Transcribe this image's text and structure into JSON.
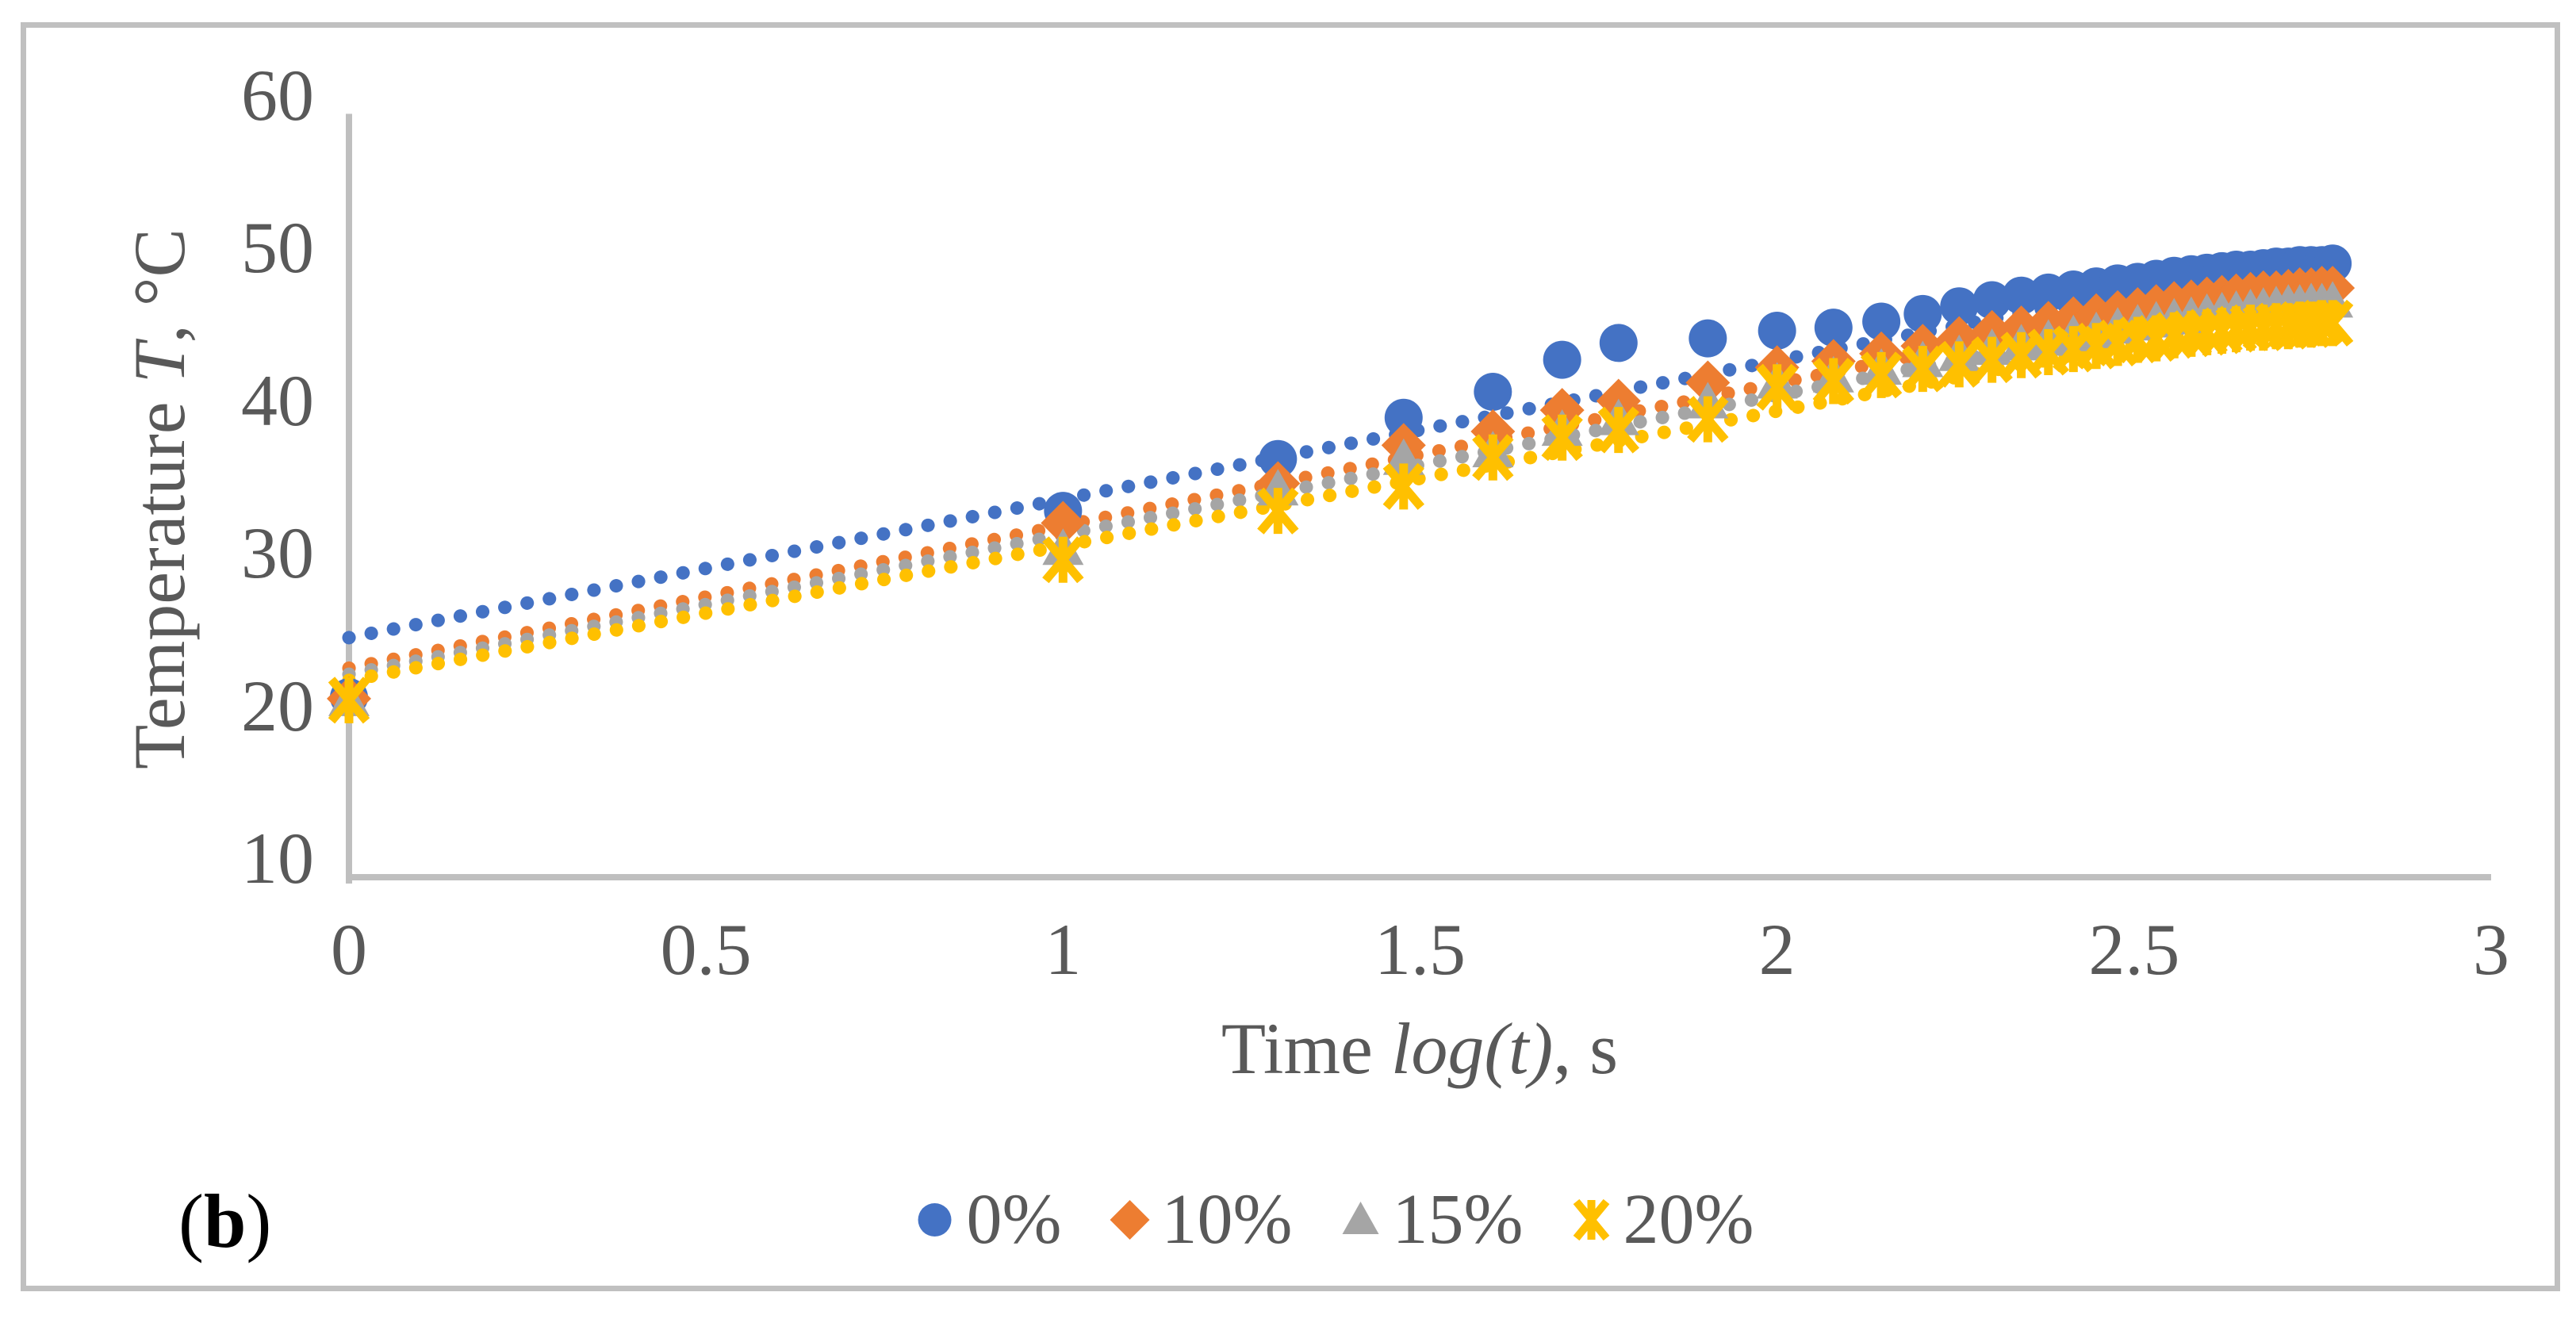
{
  "figure": {
    "panel_label": {
      "open": "(",
      "letter": "b",
      "close": ")"
    }
  },
  "chart_data": {
    "type": "scatter",
    "title": "",
    "xlabel": {
      "prefix": "Time ",
      "italic": "log(t)",
      "suffix": ", s"
    },
    "ylabel": {
      "prefix": "Temperature ",
      "italic": "T",
      "suffix": ", °C"
    },
    "xlim": [
      0,
      3
    ],
    "ylim": [
      10,
      60
    ],
    "grid": false,
    "legend_position": "bottom-center",
    "axis_line_color": "#BFBFBF",
    "tick_text_color": "#595959",
    "xticks": {
      "values": [
        0,
        0.5,
        1,
        1.5,
        2,
        2.5,
        3
      ],
      "labels": [
        "0",
        "0.5",
        "1",
        "1.5",
        "2",
        "2.5",
        "3"
      ]
    },
    "yticks": {
      "values": [
        10,
        20,
        30,
        40,
        50,
        60
      ],
      "labels": [
        "10",
        "20",
        "30",
        "40",
        "50",
        "60"
      ]
    },
    "x": [
      0,
      1,
      1.301,
      1.477,
      1.602,
      1.699,
      1.778,
      1.903,
      2,
      2.079,
      2.146,
      2.204,
      2.255,
      2.301,
      2.342,
      2.38,
      2.415,
      2.447,
      2.477,
      2.505,
      2.531,
      2.556,
      2.58,
      2.602,
      2.623,
      2.643,
      2.663,
      2.681,
      2.699,
      2.716,
      2.732,
      2.748,
      2.763,
      2.778
    ],
    "series": [
      {
        "name": "0%",
        "color": "#4472C4",
        "marker": "circle",
        "values": [
          22.0,
          34.2,
          37.6,
          40.3,
          42.0,
          44.1,
          45.2,
          45.5,
          46.0,
          46.2,
          46.6,
          47.1,
          47.6,
          48.0,
          48.3,
          48.5,
          48.7,
          48.9,
          49.1,
          49.2,
          49.4,
          49.6,
          49.7,
          49.8,
          49.9,
          50.0,
          50.0,
          50.1,
          50.2,
          50.2,
          50.3,
          50.3,
          50.3,
          50.4
        ],
        "trendline": {
          "x": [
            0,
            2.778
          ],
          "y": [
            25.9,
            51.1
          ]
        }
      },
      {
        "name": "10%",
        "color": "#ED7D31",
        "marker": "diamond",
        "values": [
          21.9,
          33.4,
          36.0,
          38.5,
          39.4,
          40.8,
          41.4,
          42.6,
          43.6,
          44.0,
          44.5,
          45.0,
          45.5,
          45.9,
          46.2,
          46.5,
          46.8,
          47.0,
          47.2,
          47.4,
          47.6,
          47.8,
          47.9,
          48.1,
          48.2,
          48.3,
          48.4,
          48.5,
          48.5,
          48.6,
          48.7,
          48.7,
          48.8,
          48.8
        ],
        "trendline": {
          "x": [
            0,
            2.778
          ],
          "y": [
            23.9,
            49.8
          ]
        }
      },
      {
        "name": "15%",
        "color": "#A5A5A5",
        "marker": "triangle",
        "values": [
          21.8,
          31.7,
          35.6,
          37.6,
          38.1,
          39.5,
          40.2,
          41.3,
          42.6,
          43.0,
          43.5,
          44.0,
          44.4,
          44.8,
          45.1,
          45.4,
          45.7,
          45.9,
          46.2,
          46.4,
          46.6,
          46.8,
          46.9,
          47.1,
          47.2,
          47.3,
          47.4,
          47.5,
          47.6,
          47.7,
          47.7,
          47.8,
          47.8,
          47.9
        ],
        "trendline": {
          "x": [
            0,
            2.778
          ],
          "y": [
            23.5,
            48.9
          ]
        }
      },
      {
        "name": "20%",
        "color": "#FFC000",
        "marker": "star",
        "values": [
          21.8,
          31.0,
          34.2,
          35.8,
          37.7,
          39.0,
          39.5,
          40.2,
          42.3,
          42.7,
          43.1,
          43.5,
          43.8,
          44.1,
          44.4,
          44.6,
          44.8,
          45.0,
          45.2,
          45.4,
          45.5,
          45.7,
          45.8,
          45.9,
          46.0,
          46.1,
          46.2,
          46.2,
          46.3,
          46.3,
          46.4,
          46.4,
          46.5,
          46.5
        ],
        "trendline": {
          "x": [
            0,
            2.778
          ],
          "y": [
            23.1,
            47.6
          ]
        }
      }
    ]
  }
}
